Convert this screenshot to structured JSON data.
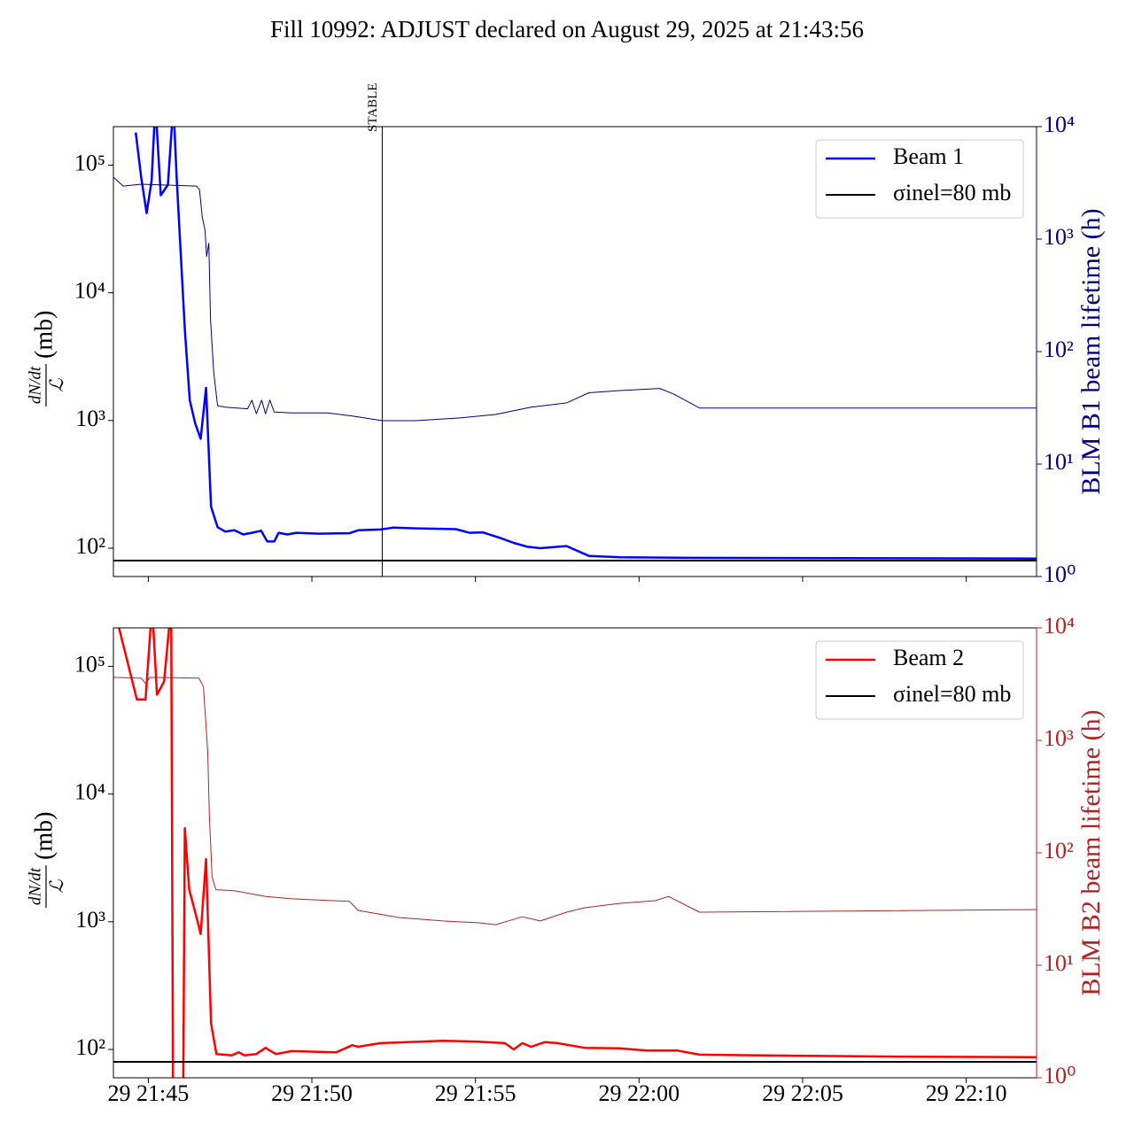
{
  "title": "Fill 10992: ADJUST declared on August 29, 2025 at 21:43:56",
  "chart_data": [
    {
      "type": "line",
      "log_y": true,
      "legend": "upper right",
      "xticklabels": false,
      "xlim": [
        "29 21:43:56",
        "29 22:12:09"
      ],
      "xticks": [
        "29 21:45",
        "29 21:50",
        "29 21:55",
        "29 22:00",
        "29 22:05",
        "29 22:10"
      ],
      "ylim": [
        60,
        200000
      ],
      "yticks": [
        {
          "value": 100,
          "label": "10²"
        },
        {
          "value": 1000,
          "label": "10³"
        },
        {
          "value": 10000,
          "label": "10⁴"
        },
        {
          "value": 100000,
          "label": "10⁵"
        }
      ],
      "y2lim": [
        1,
        10000
      ],
      "y2ticks": [
        {
          "value": 1,
          "label": "10⁰"
        },
        {
          "value": 10,
          "label": "10¹"
        },
        {
          "value": 100,
          "label": "10²"
        },
        {
          "value": 1000,
          "label": "10³"
        },
        {
          "value": 10000,
          "label": "10⁴"
        }
      ],
      "ylabel": {
        "numerator": "dN/dt",
        "denominator": "ℒ",
        "unit": "(mb)"
      },
      "y2label": "BLM B1 beam lifetime (h)",
      "y2color": "#000080",
      "annotations": [
        {
          "x": "29 21:52:09",
          "text": "STABLE"
        }
      ],
      "series": [
        {
          "name": "Beam 1",
          "color": "#0000ff",
          "linewidth": 2.5,
          "x": [
            "29 21:44:37",
            "29 21:44:47",
            "29 21:44:57",
            "29 21:45:06",
            "29 21:45:13",
            "29 21:45:23",
            "29 21:45:36",
            "29 21:45:46",
            "29 21:45:52",
            "29 21:46:07",
            "29 21:46:16",
            "29 21:46:26",
            "29 21:46:36",
            "29 21:46:46",
            "29 21:46:55",
            "29 21:47:07",
            "29 21:47:21",
            "29 21:47:38",
            "29 21:47:54",
            "29 21:48:10",
            "29 21:48:27",
            "29 21:48:38",
            "29 21:48:51",
            "29 21:48:59",
            "29 21:49:15",
            "29 21:49:32",
            "29 21:50:12",
            "29 21:51:09",
            "29 21:51:25",
            "29 21:52:06",
            "29 21:52:30",
            "29 21:53:11",
            "29 21:54:24",
            "29 21:54:49",
            "29 21:55:13",
            "29 21:55:46",
            "29 21:56:10",
            "29 21:56:34",
            "29 21:56:59",
            "29 21:57:23",
            "29 21:57:47",
            "29 21:58:28",
            "29 21:59:25",
            "29 22:01:35",
            "29 22:12:09"
          ],
          "values": [
            180000,
            80000,
            42000,
            75000,
            300000,
            58000,
            70000,
            300000,
            80000,
            5200,
            1440,
            950,
            720,
            1800,
            212,
            146,
            135,
            138,
            128,
            132,
            137,
            113,
            113,
            132,
            128,
            132,
            130,
            131,
            138,
            140,
            145,
            143,
            141,
            132,
            133,
            120,
            110,
            103,
            100,
            102,
            104,
            87,
            85,
            84,
            83
          ]
        },
        {
          "name": "σinel=80 mb",
          "color": "#000000",
          "linewidth": 2,
          "x": [
            "29 21:43:56",
            "29 22:12:09"
          ],
          "values": [
            80,
            80
          ]
        },
        {
          "color": "#000080",
          "linewidth": 1,
          "axis": "y2",
          "x": [
            "29 21:43:56",
            "29 21:44:14",
            "29 21:44:47",
            "29 21:45:52",
            "29 21:46:28",
            "29 21:46:34",
            "29 21:46:39",
            "29 21:46:44",
            "29 21:46:47",
            "29 21:46:51",
            "29 21:46:54",
            "29 21:47:00",
            "29 21:47:07",
            "29 21:47:21",
            "29 21:48:02",
            "29 21:48:10",
            "29 21:48:18",
            "29 21:48:28",
            "29 21:48:35",
            "29 21:48:43",
            "29 21:48:51",
            "29 21:49:23",
            "29 21:50:28",
            "29 21:51:17",
            "29 21:52:09",
            "29 21:53:11",
            "29 21:54:32",
            "29 21:55:37",
            "29 21:56:42",
            "29 21:57:47",
            "29 21:58:28",
            "29 21:59:25",
            "29 22:00:38",
            "29 22:01:03",
            "29 22:01:51",
            "29 22:12:09"
          ],
          "values": [
            3550,
            2960,
            3080,
            3000,
            2960,
            2750,
            1570,
            1200,
            700,
            920,
            195,
            66,
            33,
            32,
            31,
            37,
            28,
            37,
            28,
            37,
            29,
            28.5,
            28.5,
            26.6,
            24.3,
            24.3,
            25.7,
            27.6,
            32,
            35,
            43,
            45,
            47,
            42,
            31.5,
            31.5
          ]
        }
      ]
    },
    {
      "type": "line",
      "log_y": true,
      "legend": "upper right",
      "xticklabels": true,
      "xlim": [
        "29 21:43:56",
        "29 22:12:09"
      ],
      "xticks": [
        "29 21:45",
        "29 21:50",
        "29 21:55",
        "29 22:00",
        "29 22:05",
        "29 22:10"
      ],
      "ylim": [
        60,
        200000
      ],
      "yticks": [
        {
          "value": 100,
          "label": "10²"
        },
        {
          "value": 1000,
          "label": "10³"
        },
        {
          "value": 10000,
          "label": "10⁴"
        },
        {
          "value": 100000,
          "label": "10⁵"
        }
      ],
      "y2lim": [
        1,
        10000
      ],
      "y2ticks": [
        {
          "value": 1,
          "label": "10⁰"
        },
        {
          "value": 10,
          "label": "10¹"
        },
        {
          "value": 100,
          "label": "10²"
        },
        {
          "value": 1000,
          "label": "10³"
        },
        {
          "value": 10000,
          "label": "10⁴"
        }
      ],
      "ylabel": {
        "numerator": "dN/dt",
        "denominator": "ℒ",
        "unit": "(mb)"
      },
      "y2label": "BLM B2 beam lifetime (h)",
      "y2color": "#b22222",
      "series": [
        {
          "name": "Beam 2",
          "color": "#ff0000",
          "linewidth": 2.5,
          "x": [
            "29 21:43:56",
            "29 21:44:39",
            "29 21:44:55",
            "29 21:45:07",
            "29 21:45:16",
            "29 21:45:29",
            "29 21:45:42",
            "29 21:45:46",
            "29 21:46:03",
            "29 21:46:07",
            "29 21:46:15",
            "29 21:46:28",
            "29 21:46:36",
            "29 21:46:46",
            "29 21:46:55",
            "29 21:47:05",
            "29 21:47:33",
            "29 21:47:46",
            "29 21:47:56",
            "29 21:48:18",
            "29 21:48:35",
            "29 21:48:54",
            "29 21:49:23",
            "29 21:50:45",
            "29 21:51:14",
            "29 21:51:25",
            "29 21:52:06",
            "29 21:54:00",
            "29 21:55:05",
            "29 21:55:54",
            "29 21:56:10",
            "29 21:56:26",
            "29 21:56:42",
            "29 21:57:07",
            "29 21:57:31",
            "29 21:58:20",
            "29 21:59:25",
            "29 22:00:14",
            "29 22:01:11",
            "29 22:01:51",
            "29 22:03:29",
            "29 22:07:33",
            "29 22:12:09"
          ],
          "values": [
            300000,
            55000,
            55000,
            300000,
            60000,
            76000,
            300000,
            10,
            10,
            5400,
            1780,
            1100,
            800,
            3100,
            160,
            92,
            90,
            95,
            90,
            92,
            103,
            92,
            97,
            95,
            108,
            105,
            112,
            117,
            115,
            112,
            100,
            112,
            105,
            114,
            112,
            103,
            102,
            98,
            98,
            91,
            90,
            88,
            87
          ]
        },
        {
          "name": "σinel=80 mb",
          "color": "#000000",
          "linewidth": 2,
          "x": [
            "29 21:43:56",
            "29 22:12:09"
          ],
          "values": [
            80,
            80
          ]
        },
        {
          "color": "#b22222",
          "linewidth": 1,
          "axis": "y2",
          "x": [
            "29 21:43:56",
            "29 21:44:47",
            "29 21:44:55",
            "29 21:45:03",
            "29 21:46:33",
            "29 21:46:41",
            "29 21:46:46",
            "29 21:46:49",
            "29 21:46:52",
            "29 21:46:57",
            "29 21:47:04",
            "29 21:47:38",
            "29 21:48:35",
            "29 21:49:23",
            "29 21:51:09",
            "29 21:51:25",
            "29 21:52:39",
            "29 21:54:00",
            "29 21:55:05",
            "29 21:55:37",
            "29 21:56:26",
            "29 21:56:59",
            "29 21:57:47",
            "29 21:58:20",
            "29 21:59:25",
            "29 22:00:30",
            "29 22:00:54",
            "29 22:01:19",
            "29 22:01:51",
            "29 22:12:09"
          ],
          "values": [
            3630,
            3580,
            3200,
            3630,
            3580,
            3000,
            1340,
            780,
            218,
            61,
            47,
            46,
            41,
            39,
            37,
            30.8,
            26.6,
            24.8,
            23.9,
            23,
            27,
            24.8,
            29.7,
            32.5,
            35.6,
            37.6,
            41,
            35.6,
            29.7,
            31.3
          ]
        }
      ]
    }
  ]
}
